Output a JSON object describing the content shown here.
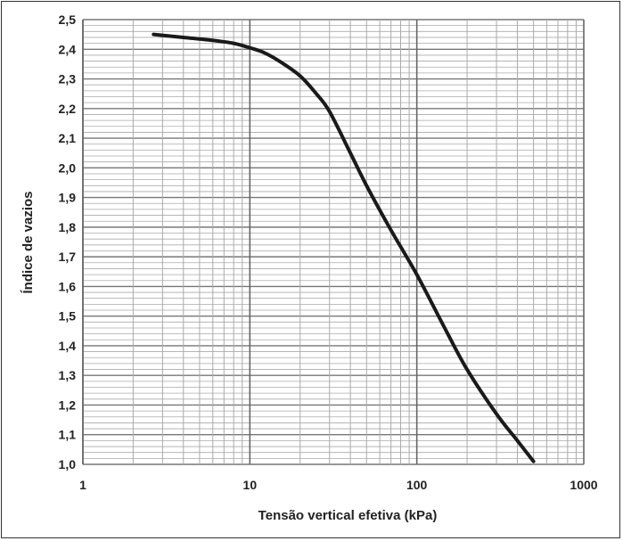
{
  "chart_data": {
    "type": "line",
    "xlabel": "Tensão vertical efetiva (kPa)",
    "ylabel": "Índice de vazios",
    "xscale": "log",
    "xlim": [
      1,
      1000
    ],
    "ylim": [
      1.0,
      2.5
    ],
    "grid": true,
    "x_tick_labels": [
      "1",
      "10",
      "100",
      "1000"
    ],
    "y_tick_labels": [
      "1,0",
      "1,1",
      "1,2",
      "1,3",
      "1,4",
      "1,5",
      "1,6",
      "1,7",
      "1,8",
      "1,9",
      "2,0",
      "2,1",
      "2,2",
      "2,3",
      "2,4",
      "2,5"
    ],
    "series": [
      {
        "color": "#1a1a1a",
        "x": [
          2.65,
          4,
          6,
          8,
          10,
          12,
          15,
          20,
          25,
          30,
          40,
          50,
          70,
          100,
          150,
          200,
          300,
          400,
          500
        ],
        "y": [
          2.45,
          2.44,
          2.43,
          2.42,
          2.405,
          2.39,
          2.36,
          2.31,
          2.25,
          2.19,
          2.05,
          1.94,
          1.79,
          1.64,
          1.45,
          1.32,
          1.17,
          1.08,
          1.01
        ]
      }
    ]
  }
}
